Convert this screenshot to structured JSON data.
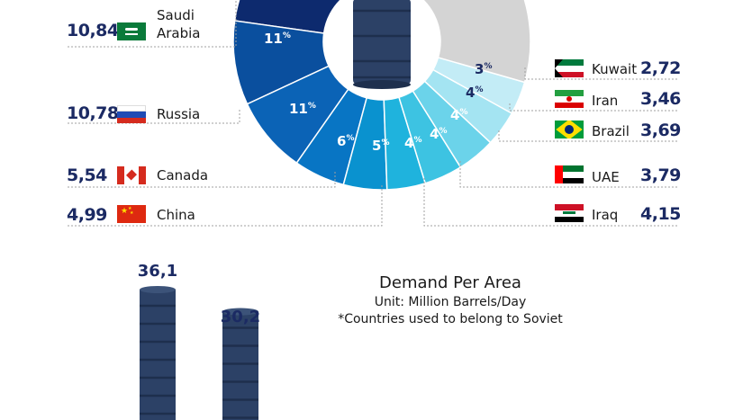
{
  "chart_data": [
    {
      "type": "pie",
      "title": "",
      "slice_labels": [
        "11%",
        "11%",
        "6%",
        "5%",
        "4%",
        "4%",
        "4%",
        "4%",
        "3%"
      ],
      "countries": [
        {
          "name": "Saudi Arabia",
          "value": "10,84",
          "pct": 11
        },
        {
          "name": "Russia",
          "value": "10,78",
          "pct": 11
        },
        {
          "name": "Canada",
          "value": "5,54",
          "pct": 6
        },
        {
          "name": "China",
          "value": "4,99",
          "pct": 5
        },
        {
          "name": "Iraq",
          "value": "4,15",
          "pct": 4
        },
        {
          "name": "UAE",
          "value": "3,79",
          "pct": 4
        },
        {
          "name": "Brazil",
          "value": "3,69",
          "pct": 4
        },
        {
          "name": "Iran",
          "value": "3,46",
          "pct": 4
        },
        {
          "name": "Kuwait",
          "value": "2,72",
          "pct": 3
        }
      ],
      "colors": [
        "#0d2a6e",
        "#0a4f9e",
        "#0b63b6",
        "#0875c4",
        "#0a92cf",
        "#1fb3dd",
        "#3dc3e2",
        "#6bd3ea",
        "#a4e4f2",
        "#d4d4d4"
      ]
    },
    {
      "type": "bar",
      "title": "Demand Per Area",
      "subtitle": "Unit: Million Barrels/Day",
      "note": "*Countries used to belong to Soviet",
      "values": [
        36.1,
        30.2
      ],
      "value_labels": [
        "36,1",
        "30,2"
      ]
    }
  ],
  "labels": {
    "saudi": [
      "Saudi",
      "Arabia"
    ],
    "russia": "Russia",
    "canada": "Canada",
    "china": "China",
    "kuwait": "Kuwait",
    "iran": "Iran",
    "brazil": "Brazil",
    "uae": "UAE",
    "iraq": "Iraq"
  },
  "demand": {
    "title": "Demand Per Area",
    "unit": "Unit: Million Barrels/Day",
    "note": "*Countries used to belong to Soviet"
  },
  "colors": {
    "navy": "#1b2a63",
    "barrel": "#2c4166",
    "barrel_dark": "#1e2f4d",
    "leader": "#b5b5b5"
  }
}
